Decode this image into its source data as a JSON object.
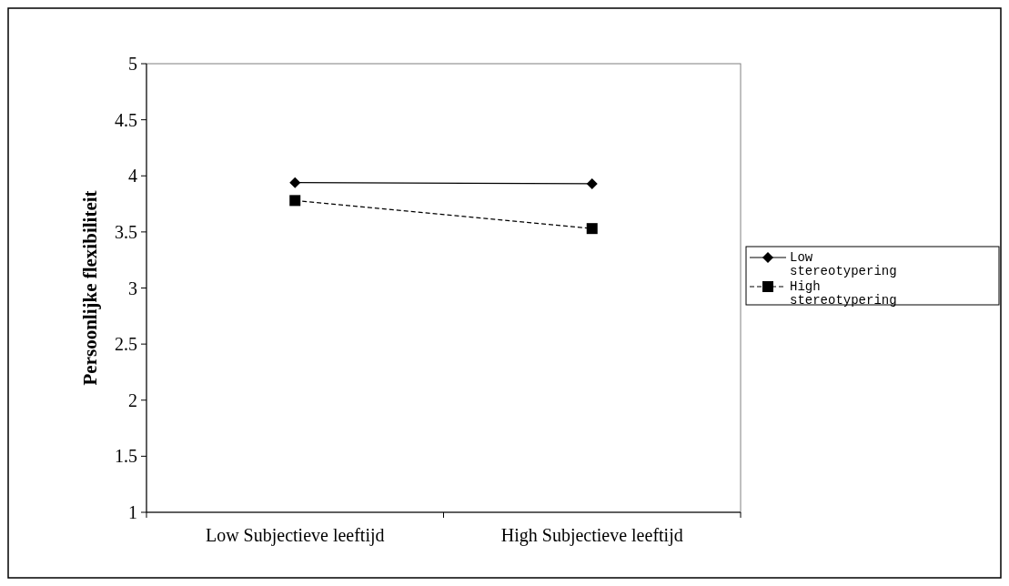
{
  "chart_data": {
    "type": "line",
    "ylabel": "Persoonlijke flexibiliteit",
    "categories": [
      "Low Subjectieve leeftijd",
      "High Subjectieve leeftijd"
    ],
    "series": [
      {
        "name": "Low stereotypering",
        "color": "#000000",
        "values": [
          3.94,
          3.93
        ],
        "marker": "diamond",
        "line_style": "solid"
      },
      {
        "name": "High stereotypering",
        "color": "#000000",
        "values": [
          3.78,
          3.53
        ],
        "marker": "square",
        "line_style": "dashed"
      }
    ],
    "ylim": [
      1,
      5
    ],
    "yticks": [
      1,
      1.5,
      2,
      2.5,
      3,
      3.5,
      4,
      4.5,
      5
    ],
    "grid": false,
    "legend": "right"
  }
}
